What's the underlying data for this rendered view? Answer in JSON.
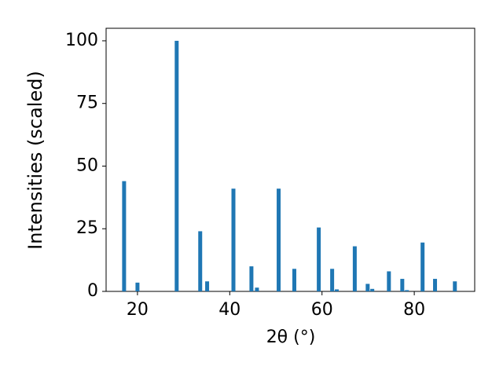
{
  "chart_data": {
    "type": "bar",
    "xlabel": "2θ (°)",
    "ylabel": "Intensities (scaled)",
    "x": [
      17.1,
      20.0,
      28.5,
      33.6,
      35.1,
      40.8,
      44.7,
      45.9,
      50.6,
      54.0,
      59.3,
      62.2,
      63.2,
      67.1,
      69.9,
      70.9,
      74.5,
      77.4,
      78.4,
      81.8,
      84.5,
      88.8
    ],
    "values": [
      44,
      3.5,
      100,
      24,
      4,
      41,
      10,
      1.5,
      41,
      9,
      25.5,
      9,
      0.8,
      18,
      3,
      1,
      8,
      5,
      0.5,
      19.5,
      5,
      4
    ],
    "color": "#1f77b4",
    "xlim": [
      13.2,
      93.1
    ],
    "xticks": [
      20,
      40,
      60,
      80
    ],
    "ylim": [
      0,
      105
    ],
    "yticks": [
      0,
      25,
      50,
      75,
      100
    ]
  }
}
